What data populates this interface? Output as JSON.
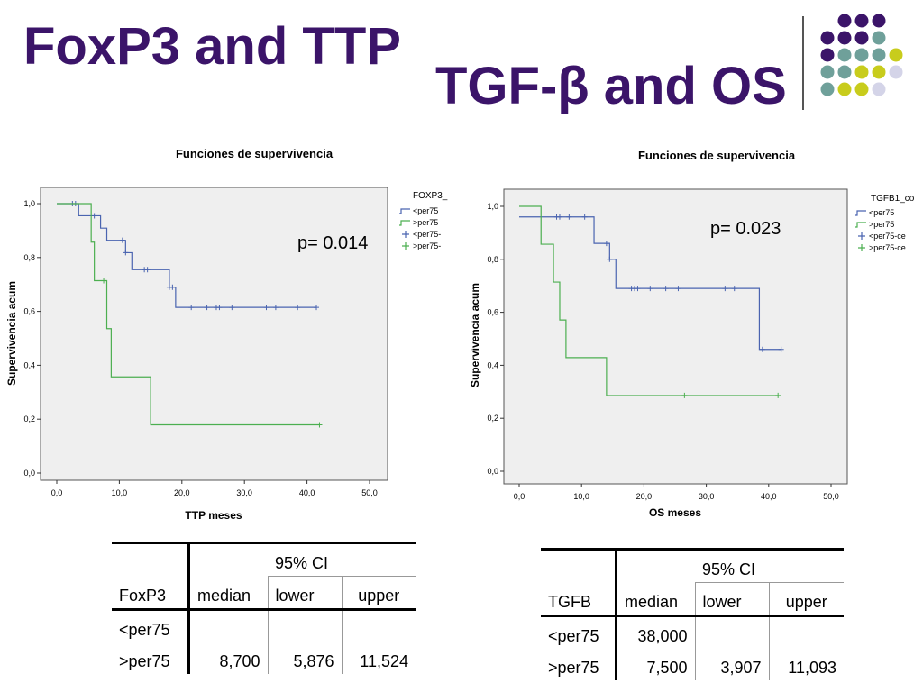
{
  "slide": {
    "title_left": "FoxP3 and TTP",
    "title_right": "TGF-β and OS",
    "decoration_colors": {
      "purple": "#3b1469",
      "teal": "#6fa09a",
      "yellow": "#c8cc1c",
      "lavender": "#d4d4e8"
    }
  },
  "chart_data": [
    {
      "type": "line",
      "subtype": "kaplan-meier",
      "title": "Funciones de supervivencia",
      "xlabel": "TTP meses",
      "ylabel": "Supervivencia acum",
      "xlim": [
        0,
        50
      ],
      "ylim": [
        0,
        1
      ],
      "xticks": [
        "0,0",
        "10,0",
        "20,0",
        "30,0",
        "40,0",
        "50,0"
      ],
      "yticks": [
        "0,0",
        "0,2",
        "0,4",
        "0,6",
        "0,8",
        "1,0"
      ],
      "legend_title": "FOXP3_",
      "legend": [
        "<per75",
        ">per75",
        "<per75-",
        ">per75-"
      ],
      "annotation": "p= 0.014",
      "series": [
        {
          "name": "<per75",
          "color": "#4a64b0",
          "steps": [
            [
              0,
              1.0
            ],
            [
              3.5,
              0.955
            ],
            [
              6,
              0.955
            ],
            [
              7,
              0.909
            ],
            [
              8,
              0.864
            ],
            [
              11,
              0.818
            ],
            [
              12,
              0.755
            ],
            [
              18,
              0.69
            ],
            [
              19,
              0.615
            ],
            [
              41.5,
              0.615
            ]
          ],
          "censored": [
            [
              2.5,
              1.0
            ],
            [
              3,
              1.0
            ],
            [
              6,
              0.955
            ],
            [
              10.5,
              0.864
            ],
            [
              11,
              0.818
            ],
            [
              14,
              0.755
            ],
            [
              14.5,
              0.755
            ],
            [
              18,
              0.69
            ],
            [
              18.5,
              0.69
            ],
            [
              21.5,
              0.615
            ],
            [
              24,
              0.615
            ],
            [
              25.5,
              0.615
            ],
            [
              26,
              0.615
            ],
            [
              28,
              0.615
            ],
            [
              33.5,
              0.615
            ],
            [
              35,
              0.615
            ],
            [
              38.5,
              0.615
            ],
            [
              41.5,
              0.615
            ]
          ]
        },
        {
          "name": ">per75",
          "color": "#4caf50",
          "steps": [
            [
              0,
              1.0
            ],
            [
              5.5,
              0.857
            ],
            [
              6,
              0.714
            ],
            [
              8,
              0.536
            ],
            [
              8.7,
              0.357
            ],
            [
              15,
              0.179
            ],
            [
              42,
              0.179
            ]
          ],
          "censored": [
            [
              7.5,
              0.714
            ],
            [
              42,
              0.179
            ]
          ]
        }
      ]
    },
    {
      "type": "line",
      "subtype": "kaplan-meier",
      "title": "Funciones de supervivencia",
      "xlabel": "OS meses",
      "ylabel": "Supervivencia acum",
      "xlim": [
        0,
        50
      ],
      "ylim": [
        0,
        1
      ],
      "xticks": [
        "0,0",
        "10,0",
        "20,0",
        "30,0",
        "40,0",
        "50,0"
      ],
      "yticks": [
        "0,0",
        "0,2",
        "0,4",
        "0,6",
        "0,8",
        "1,0"
      ],
      "legend_title": "TGFB1_co",
      "legend": [
        "<per75",
        ">per75",
        "<per75-ce",
        ">per75-ce"
      ],
      "annotation": "p= 0.023",
      "series": [
        {
          "name": "<per75",
          "color": "#4a64b0",
          "steps": [
            [
              0,
              0.96
            ],
            [
              11,
              0.96
            ],
            [
              12,
              0.86
            ],
            [
              14.5,
              0.8
            ],
            [
              15.5,
              0.69
            ],
            [
              38,
              0.69
            ],
            [
              38.5,
              0.46
            ],
            [
              42,
              0.46
            ]
          ],
          "censored": [
            [
              6,
              0.96
            ],
            [
              6.5,
              0.96
            ],
            [
              8,
              0.96
            ],
            [
              10.5,
              0.96
            ],
            [
              14,
              0.86
            ],
            [
              14.5,
              0.8
            ],
            [
              18,
              0.69
            ],
            [
              18.5,
              0.69
            ],
            [
              19,
              0.69
            ],
            [
              21,
              0.69
            ],
            [
              23.5,
              0.69
            ],
            [
              25.5,
              0.69
            ],
            [
              33,
              0.69
            ],
            [
              34.5,
              0.69
            ],
            [
              39,
              0.46
            ],
            [
              42,
              0.46
            ]
          ]
        },
        {
          "name": ">per75",
          "color": "#4caf50",
          "steps": [
            [
              0,
              1.0
            ],
            [
              3,
              1.0
            ],
            [
              3.5,
              0.857
            ],
            [
              5.5,
              0.714
            ],
            [
              6.5,
              0.571
            ],
            [
              7.5,
              0.429
            ],
            [
              14,
              0.286
            ],
            [
              41.5,
              0.286
            ]
          ],
          "censored": [
            [
              26.5,
              0.286
            ],
            [
              41.5,
              0.286
            ]
          ]
        }
      ]
    }
  ],
  "tables": [
    {
      "group_label": "FoxP3",
      "median_label": "median",
      "ci_label": "95% CI",
      "lower_label": "lower",
      "upper_label": "upper",
      "rows": [
        {
          "group": "<per75",
          "median": "",
          "lower": "",
          "upper": ""
        },
        {
          "group": ">per75",
          "median": "8,700",
          "lower": "5,876",
          "upper": "11,524"
        }
      ]
    },
    {
      "group_label": "TGFB",
      "median_label": "median",
      "ci_label": "95% CI",
      "lower_label": "lower",
      "upper_label": "upper",
      "rows": [
        {
          "group": "<per75",
          "median": "38,000",
          "lower": "",
          "upper": ""
        },
        {
          "group": ">per75",
          "median": "7,500",
          "lower": "3,907",
          "upper": "11,093"
        }
      ]
    }
  ]
}
